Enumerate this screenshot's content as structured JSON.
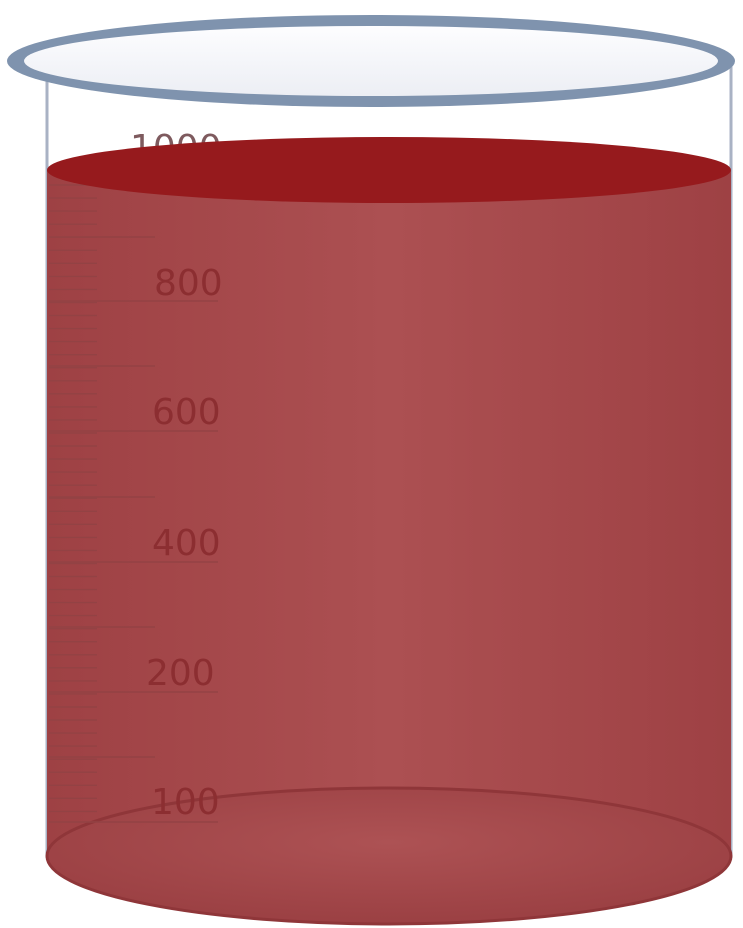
{
  "beaker": {
    "scale_labels": [
      "1000",
      "800",
      "600",
      "400",
      "200",
      "100"
    ],
    "liquid_level_ml": 1000,
    "liquid_color": "#a84b4d",
    "liquid_surface_color": "#961a1d",
    "rim_color": "#7f93ae",
    "rim_inner_color": "#f5f6fa",
    "glass_wall_color": "#a9b2c4"
  }
}
